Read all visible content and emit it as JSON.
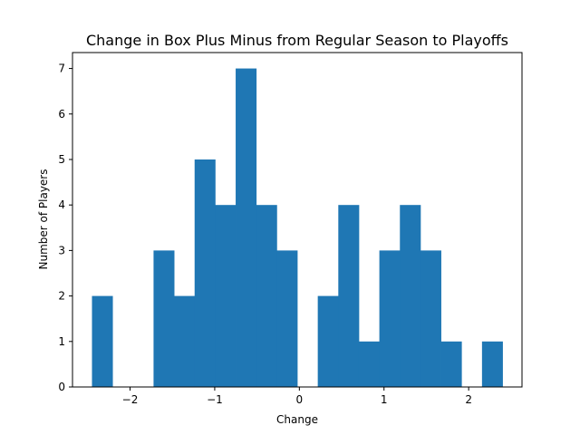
{
  "chart_data": {
    "type": "bar",
    "title": "Change in Box Plus Minus from Regular Season to Playoffs",
    "xlabel": "Change",
    "ylabel": "Number of Players",
    "xlim": [
      -2.68,
      2.63
    ],
    "ylim": [
      0,
      7.35
    ],
    "bin_start": -2.45,
    "bin_width": 0.2425,
    "counts": [
      2,
      0,
      0,
      3,
      2,
      5,
      4,
      7,
      4,
      3,
      0,
      2,
      4,
      1,
      3,
      4,
      3,
      1,
      0,
      1
    ],
    "xticks": [
      -2,
      -1,
      0,
      1,
      2
    ],
    "xtick_labels": [
      "−2",
      "−1",
      "0",
      "1",
      "2"
    ],
    "yticks": [
      0,
      1,
      2,
      3,
      4,
      5,
      6,
      7
    ],
    "ytick_labels": [
      "0",
      "1",
      "2",
      "3",
      "4",
      "5",
      "6",
      "7"
    ],
    "grid": false,
    "legend": "none",
    "bar_color": "#1f77b4"
  }
}
